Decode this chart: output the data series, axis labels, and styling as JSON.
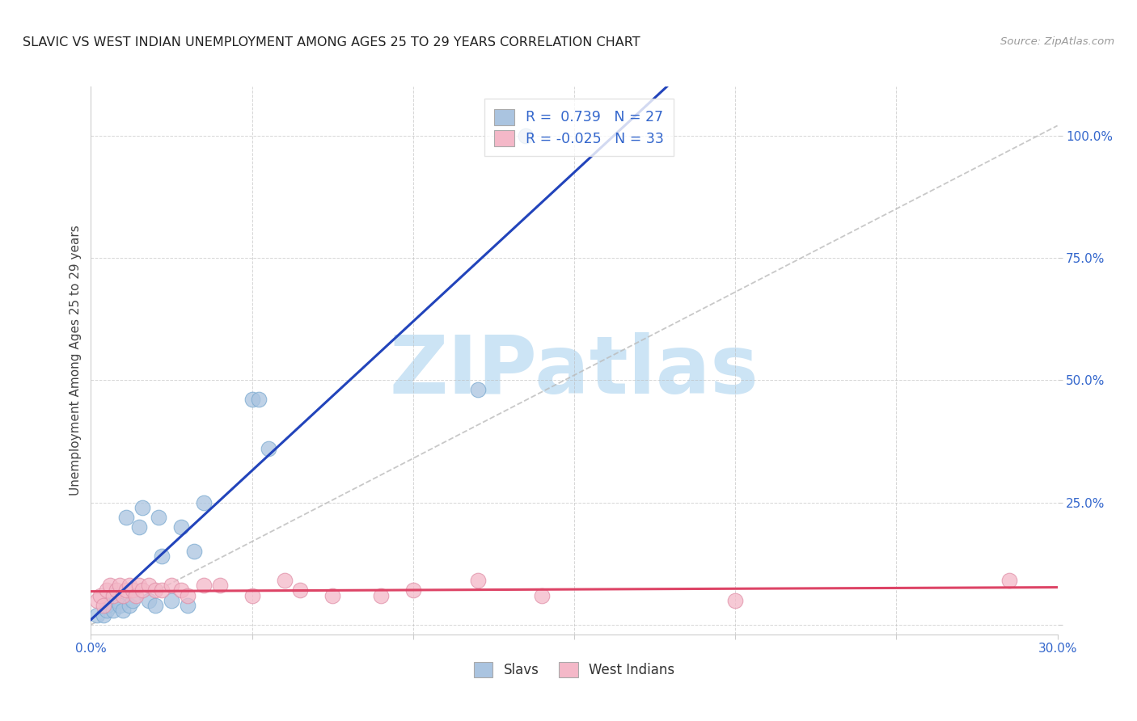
{
  "title": "SLAVIC VS WEST INDIAN UNEMPLOYMENT AMONG AGES 25 TO 29 YEARS CORRELATION CHART",
  "source": "Source: ZipAtlas.com",
  "ylabel": "Unemployment Among Ages 25 to 29 years",
  "xlim": [
    0.0,
    0.3
  ],
  "ylim": [
    -0.02,
    1.1
  ],
  "xticks": [
    0.0,
    0.05,
    0.1,
    0.15,
    0.2,
    0.25,
    0.3
  ],
  "xtick_labels": [
    "0.0%",
    "",
    "",
    "",
    "",
    "",
    "30.0%"
  ],
  "yticks": [
    0.0,
    0.25,
    0.5,
    0.75,
    1.0
  ],
  "ytick_labels": [
    "",
    "25.0%",
    "50.0%",
    "75.0%",
    "100.0%"
  ],
  "slavs_x": [
    0.002,
    0.004,
    0.005,
    0.005,
    0.007,
    0.008,
    0.009,
    0.01,
    0.011,
    0.012,
    0.013,
    0.015,
    0.016,
    0.018,
    0.02,
    0.021,
    0.022,
    0.025,
    0.028,
    0.03,
    0.032,
    0.035,
    0.05,
    0.052,
    0.055,
    0.12,
    0.135
  ],
  "slavs_y": [
    0.02,
    0.02,
    0.03,
    0.04,
    0.03,
    0.05,
    0.04,
    0.03,
    0.22,
    0.04,
    0.05,
    0.2,
    0.24,
    0.05,
    0.04,
    0.22,
    0.14,
    0.05,
    0.2,
    0.04,
    0.15,
    0.25,
    0.46,
    0.46,
    0.36,
    0.48,
    1.0
  ],
  "west_indian_x": [
    0.002,
    0.003,
    0.004,
    0.005,
    0.006,
    0.007,
    0.008,
    0.009,
    0.01,
    0.011,
    0.012,
    0.013,
    0.014,
    0.015,
    0.016,
    0.018,
    0.02,
    0.022,
    0.025,
    0.028,
    0.03,
    0.035,
    0.04,
    0.05,
    0.06,
    0.065,
    0.075,
    0.09,
    0.1,
    0.12,
    0.14,
    0.2,
    0.285
  ],
  "west_indian_y": [
    0.05,
    0.06,
    0.04,
    0.07,
    0.08,
    0.06,
    0.07,
    0.08,
    0.06,
    0.07,
    0.08,
    0.07,
    0.06,
    0.08,
    0.07,
    0.08,
    0.07,
    0.07,
    0.08,
    0.07,
    0.06,
    0.08,
    0.08,
    0.06,
    0.09,
    0.07,
    0.06,
    0.06,
    0.07,
    0.09,
    0.06,
    0.05,
    0.09
  ],
  "slavs_R": 0.739,
  "slavs_N": 27,
  "west_indian_R": -0.025,
  "west_indian_N": 33,
  "slav_color": "#aac4e0",
  "slav_edge_color": "#7aaad0",
  "west_indian_color": "#f4b8c8",
  "west_indian_edge_color": "#e090a8",
  "slav_line_color": "#2244bb",
  "west_indian_line_color": "#dd4466",
  "diagonal_color": "#bbbbbb",
  "legend_label_slavs": "Slavs",
  "legend_label_west_indians": "West Indians",
  "watermark_text": "ZIPatlas",
  "watermark_color": "#cce4f5",
  "background_color": "#ffffff",
  "grid_color": "#bbbbbb",
  "title_color": "#222222",
  "source_color": "#999999",
  "tick_label_color": "#3366cc",
  "ylabel_color": "#444444"
}
